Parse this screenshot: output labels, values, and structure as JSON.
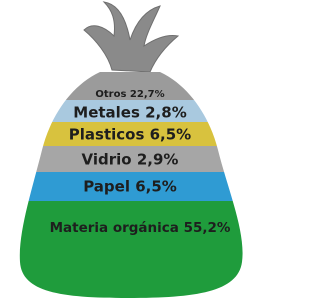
{
  "bands": [
    {
      "label": "Otros 22,7%"
    },
    {
      "label": "Metales 2,8%"
    },
    {
      "label": "Plasticos 6,5%"
    },
    {
      "label": "Vidrio 2,9%"
    },
    {
      "label": "Papel 6,5%"
    },
    {
      "label": "Materia orgánica 55,2%"
    }
  ]
}
